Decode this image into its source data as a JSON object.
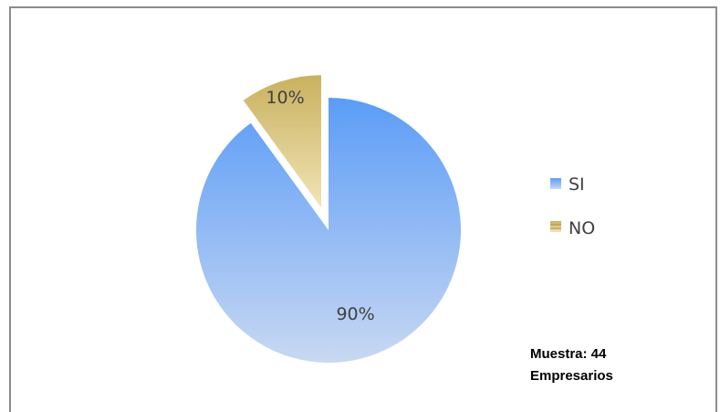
{
  "chart_data": {
    "type": "pie",
    "categories": [
      "SI",
      "NO"
    ],
    "values": [
      90,
      10
    ],
    "labels": [
      "90%",
      "10%"
    ],
    "exploded": [
      "NO"
    ],
    "legend_position": "right",
    "colors": {
      "SI": {
        "top": "#5b9cf7",
        "bottom": "#c8d8f2"
      },
      "NO": {
        "top": "#c9b15f",
        "bottom": "#f1e4b6"
      }
    }
  },
  "legend": {
    "items": [
      {
        "label": "SI"
      },
      {
        "label": "NO"
      }
    ]
  },
  "note": {
    "line1": "Muestra: 44",
    "line2": "Empresarios"
  }
}
